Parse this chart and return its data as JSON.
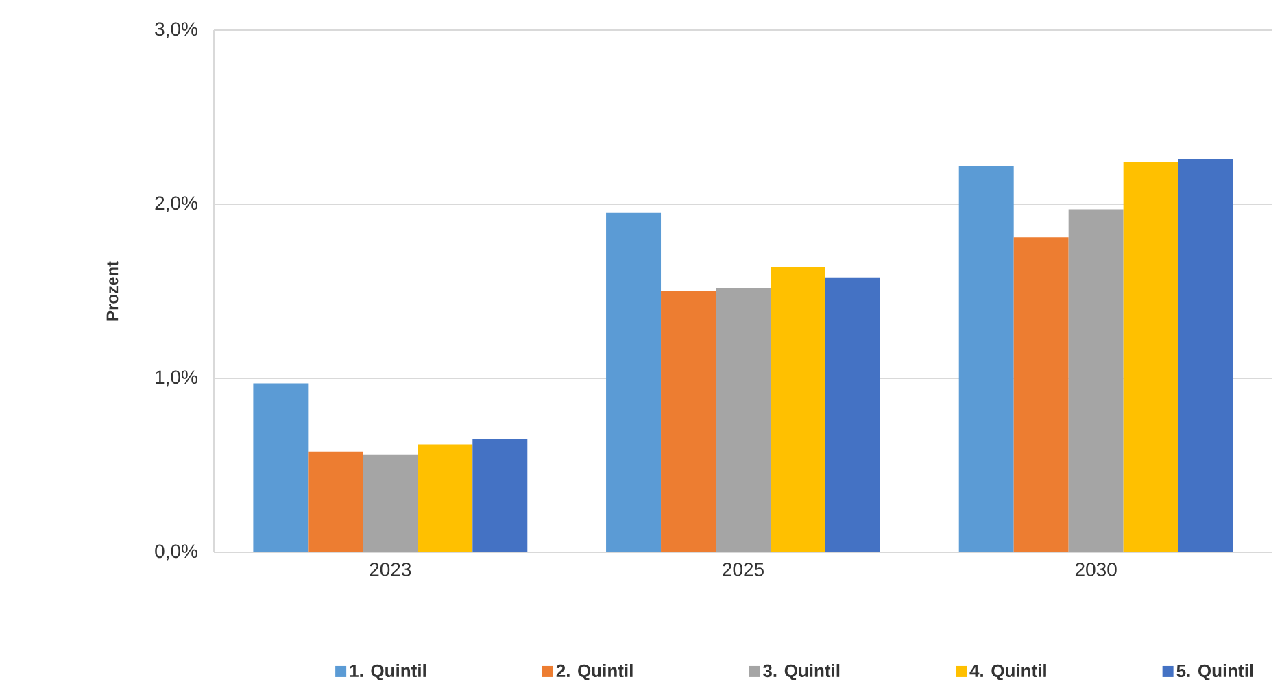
{
  "chart_data": {
    "type": "bar",
    "ylabel": "Prozent",
    "categories": [
      "2023",
      "2025",
      "2030"
    ],
    "series": [
      {
        "name": "1. Quintil",
        "color": "#5b9bd5",
        "values": [
          0.97,
          1.95,
          2.22
        ]
      },
      {
        "name": "2. Quintil",
        "color": "#ed7d31",
        "values": [
          0.58,
          1.5,
          1.81
        ]
      },
      {
        "name": "3. Quintil",
        "color": "#a5a5a5",
        "values": [
          0.56,
          1.52,
          1.97
        ]
      },
      {
        "name": "4. Quintil",
        "color": "#ffc000",
        "values": [
          0.62,
          1.64,
          2.24
        ]
      },
      {
        "name": "5. Quintil",
        "color": "#4472c4",
        "values": [
          0.65,
          1.58,
          2.26
        ]
      }
    ],
    "ylim": [
      0,
      3
    ],
    "yticks": [
      {
        "value": 0,
        "label": "0,0%"
      },
      {
        "value": 1,
        "label": "1,0%"
      },
      {
        "value": 2,
        "label": "2,0%"
      },
      {
        "value": 3,
        "label": "3,0%"
      }
    ],
    "grid": "y",
    "legend": "bottom"
  }
}
